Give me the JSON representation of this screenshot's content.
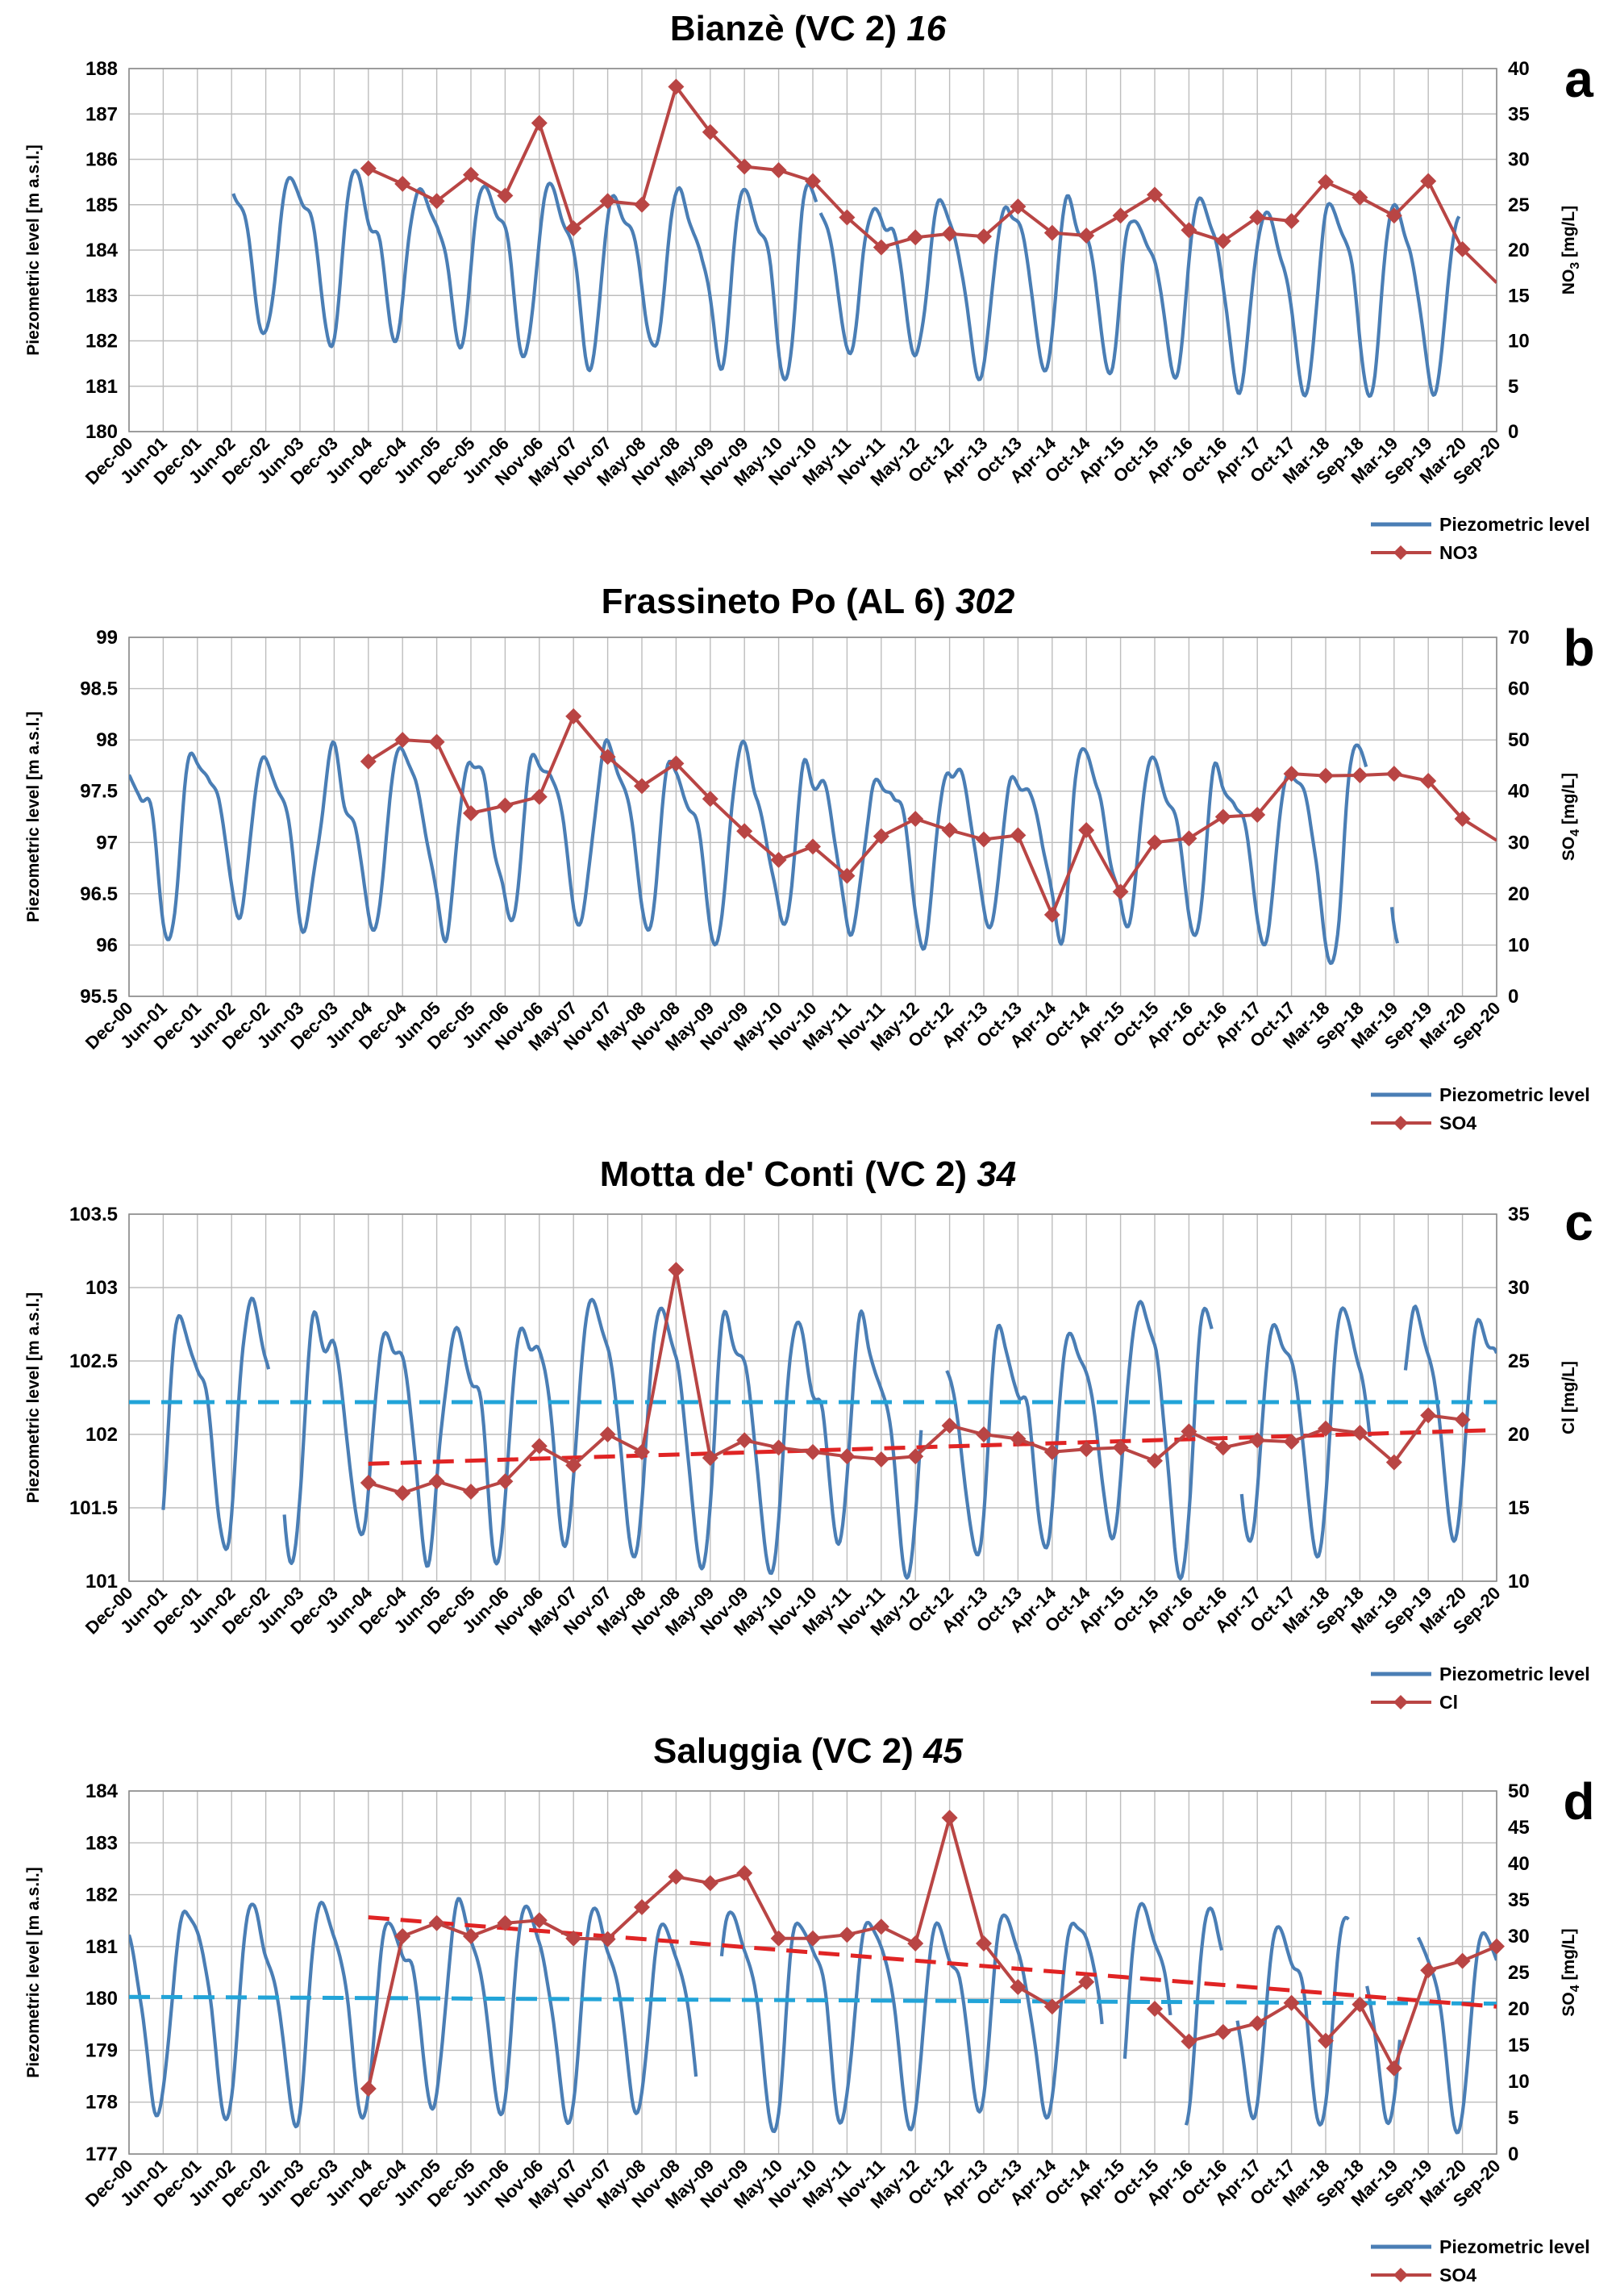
{
  "figure": {
    "x_ticks": [
      "Dec-00",
      "Jun-01",
      "Dec-01",
      "Jun-02",
      "Dec-02",
      "Jun-03",
      "Dec-03",
      "Jun-04",
      "Dec-04",
      "Jun-05",
      "Dec-05",
      "Jun-06",
      "Nov-06",
      "May-07",
      "Nov-07",
      "May-08",
      "Nov-08",
      "May-09",
      "Nov-09",
      "May-10",
      "Nov-10",
      "May-11",
      "Nov-11",
      "May-12",
      "Oct-12",
      "Apr-13",
      "Oct-13",
      "Apr-14",
      "Oct-14",
      "Apr-15",
      "Oct-15",
      "Apr-16",
      "Oct-16",
      "Apr-17",
      "Oct-17",
      "Mar-18",
      "Sep-18",
      "Mar-19",
      "Sep-19",
      "Mar-20",
      "Sep-20"
    ],
    "legend_piezo": "Piezometric level"
  },
  "chart_data": [
    {
      "type": "line",
      "panel": "a",
      "title_name": "Bianzè (VC 2) ",
      "title_num": "16",
      "ylabel_left": "Piezometric level [m a.s.l.]",
      "ylabel_right": "NO3 [mg/L]",
      "ylabel_right_pre": "NO",
      "ylabel_right_sub": "3",
      "ylabel_right_post": " [mg/L]",
      "ylim_left": [
        180,
        188
      ],
      "ylim_right": [
        0,
        40
      ],
      "yticks_left": [
        "180",
        "181",
        "182",
        "183",
        "184",
        "185",
        "186",
        "187",
        "188"
      ],
      "yticks_right": [
        "0",
        "5",
        "10",
        "15",
        "20",
        "25",
        "30",
        "35",
        "40"
      ],
      "legend_series": "NO3",
      "colors": {
        "piezo": "#4a7eb5",
        "chem": "#b94544"
      },
      "piezo": {
        "t0": 3.05,
        "t1": 38.9,
        "base": 184.2,
        "amp": 2.0,
        "period": 1.9,
        "phase": 0.6,
        "trend": -0.03,
        "noise": 0.35,
        "seed": 3,
        "gaps": [
          [
            20.1,
            20.2
          ]
        ]
      },
      "series": {
        "name": "NO3",
        "x": [
          7.0,
          8.0,
          9.0,
          10.0,
          11.0,
          12.0,
          13.0,
          14.0,
          15.0,
          16.0,
          17.0,
          18.0,
          19.0,
          20.0,
          21.0,
          22.0,
          23.0,
          24.0,
          25.0,
          26.0,
          27.0,
          28.0,
          29.0,
          30.0,
          31.0,
          32.0,
          33.0,
          34.0,
          35.0,
          36.0,
          37.0,
          38.0,
          39.0,
          40.0
        ],
        "values": [
          29.0,
          27.3,
          25.4,
          28.3,
          26.0,
          34.0,
          22.4,
          25.4,
          25.0,
          38.0,
          33.0,
          29.2,
          28.8,
          27.6,
          23.6,
          20.3,
          21.4,
          21.8,
          21.5,
          24.8,
          21.9,
          21.6,
          23.8,
          26.1,
          22.2,
          21.0,
          23.6,
          23.2,
          27.5,
          25.8,
          23.8,
          27.6,
          20.1,
          16.4
        ],
        "end_at_edge": true
      },
      "trend_lines": []
    },
    {
      "type": "line",
      "panel": "b",
      "title_name": "Frassineto Po (AL 6) ",
      "title_num": "302",
      "ylabel_left": "Piezometric level [m a.s.l.]",
      "ylabel_right": "SO4 [mg/L]",
      "ylabel_right_pre": "SO",
      "ylabel_right_sub": "4",
      "ylabel_right_post": " [mg/L]",
      "ylim_left": [
        95.5,
        99
      ],
      "ylim_right": [
        0,
        70
      ],
      "yticks_left": [
        "95.5",
        "96",
        "96.5",
        "97",
        "97.5",
        "98",
        "98.5",
        "99"
      ],
      "yticks_right": [
        "0",
        "10",
        "20",
        "30",
        "40",
        "50",
        "60",
        "70"
      ],
      "legend_series": "SO4",
      "colors": {
        "piezo": "#4a7eb5",
        "chem": "#b94544"
      },
      "piezo": {
        "t0": 0.0,
        "t1": 37.1,
        "base": 97.15,
        "amp": 0.9,
        "period": 2.0,
        "phase": 1.6,
        "trend": -0.004,
        "noise": 0.25,
        "seed": 11,
        "gaps": [
          [
            36.2,
            36.9
          ]
        ]
      },
      "series": {
        "name": "SO4",
        "x": [
          7.0,
          8.0,
          9.0,
          10.0,
          11.0,
          12.0,
          13.0,
          14.0,
          15.0,
          16.0,
          17.0,
          18.0,
          19.0,
          20.0,
          21.0,
          22.0,
          23.0,
          24.0,
          25.0,
          26.0,
          27.0,
          28.0,
          29.0,
          30.0,
          31.0,
          32.0,
          33.0,
          34.0,
          35.0,
          36.0,
          37.0,
          38.0,
          39.0,
          40.0
        ],
        "values": [
          45.8,
          50.0,
          49.6,
          35.7,
          37.2,
          38.9,
          54.6,
          46.7,
          41.0,
          45.4,
          38.5,
          32.2,
          26.6,
          29.2,
          23.5,
          31.2,
          34.6,
          32.4,
          30.6,
          31.4,
          15.9,
          32.4,
          20.4,
          30.0,
          30.8,
          35.0,
          35.4,
          43.4,
          43.0,
          43.1,
          43.4,
          42.0,
          34.6,
          30.4
        ],
        "end_at_edge": true
      },
      "trend_lines": []
    },
    {
      "type": "line",
      "panel": "c",
      "title_name": "Motta de' Conti (VC 2) ",
      "title_num": "34",
      "ylabel_left": "Piezometric level [m a.s.l.]",
      "ylabel_right": "Cl [mg/L]",
      "ylabel_right_pre": "Cl",
      "ylabel_right_sub": "",
      "ylabel_right_post": " [mg/L]",
      "ylim_left": [
        101,
        103.5
      ],
      "ylim_right": [
        10,
        35
      ],
      "yticks_left": [
        "101",
        "101.5",
        "102",
        "102.5",
        "103",
        "103.5"
      ],
      "yticks_right": [
        "10",
        "15",
        "20",
        "25",
        "30",
        "35"
      ],
      "legend_series": "Cl",
      "colors": {
        "piezo": "#4a7eb5",
        "chem": "#b94544"
      },
      "piezo": {
        "t0": 1.0,
        "t1": 40.0,
        "base": 102.1,
        "amp": 0.85,
        "period": 2.0,
        "phase": 1.2,
        "trend": 0.0,
        "noise": 0.18,
        "seed": 21,
        "gaps": [
          [
            4.1,
            4.5
          ],
          [
            23.2,
            23.9
          ],
          [
            31.7,
            32.5
          ],
          [
            36.3,
            37.3
          ]
        ]
      },
      "series": {
        "name": "Cl",
        "x": [
          7.0,
          8.0,
          9.0,
          10.0,
          11.0,
          12.0,
          13.0,
          14.0,
          15.0,
          16.0,
          17.0,
          18.0,
          19.0,
          20.0,
          21.0,
          22.0,
          23.0,
          24.0,
          25.0,
          26.0,
          27.0,
          28.0,
          29.0,
          30.0,
          31.0,
          32.0,
          33.0,
          34.0,
          35.0,
          36.0,
          37.0,
          38.0,
          39.0
        ],
        "values": [
          16.7,
          16.0,
          16.8,
          16.1,
          16.8,
          19.2,
          17.9,
          20.0,
          18.8,
          31.2,
          18.4,
          19.6,
          19.1,
          18.8,
          18.5,
          18.3,
          18.5,
          20.6,
          20.0,
          19.7,
          18.8,
          19.0,
          19.1,
          18.2,
          20.2,
          19.1,
          19.6,
          19.5,
          20.4,
          20.1,
          18.1,
          21.3,
          21.0
        ],
        "end_at_edge": false
      },
      "trend_lines": [
        {
          "color": "#22a4d8",
          "x": [
            0.0,
            40.0
          ],
          "y_axis": "left",
          "values": [
            102.22,
            102.22
          ]
        },
        {
          "color": "#e02424",
          "x": [
            7.0,
            40.0
          ],
          "y_axis": "right",
          "values": [
            18.0,
            20.3
          ]
        }
      ]
    },
    {
      "type": "line",
      "panel": "d",
      "title_name": "Saluggia (VC 2) ",
      "title_num": "45",
      "ylabel_left": "Piezometric level [m a.s.l.]",
      "ylabel_right": "SO4 [mg/L]",
      "ylabel_right_pre": "SO",
      "ylabel_right_sub": "4",
      "ylabel_right_post": " [mg/L]",
      "ylim_left": [
        177,
        184
      ],
      "ylim_right": [
        0,
        50
      ],
      "yticks_left": [
        "177",
        "178",
        "179",
        "180",
        "181",
        "182",
        "183",
        "184"
      ],
      "yticks_right": [
        "0",
        "5",
        "10",
        "15",
        "20",
        "25",
        "30",
        "35",
        "40",
        "45",
        "50"
      ],
      "legend_series": "SO4",
      "colors": {
        "piezo": "#4a7eb5",
        "chem": "#b94544"
      },
      "piezo": {
        "t0": 0.0,
        "t1": 40.0,
        "base": 180.0,
        "amp": 2.1,
        "period": 2.0,
        "phase": 1.3,
        "trend": -0.005,
        "noise": 0.3,
        "seed": 33,
        "gaps": [
          [
            16.6,
            17.3
          ],
          [
            28.5,
            29.1
          ],
          [
            30.5,
            30.9
          ],
          [
            32.0,
            32.4
          ],
          [
            35.7,
            36.2
          ],
          [
            37.2,
            37.7
          ]
        ]
      },
      "series": {
        "name": "SO4",
        "x": [
          7.0,
          8.0,
          9.0,
          10.0,
          11.0,
          12.0,
          13.0,
          14.0,
          15.0,
          16.0,
          17.0,
          18.0,
          19.0,
          20.0,
          21.0,
          22.0,
          23.0,
          24.0,
          25.0,
          26.0,
          27.0,
          28.0,
          29.0,
          30.0,
          31.0,
          32.0,
          33.0,
          34.0,
          35.0,
          36.0,
          37.0,
          38.0,
          39.0,
          40.0
        ],
        "values": [
          9.0,
          30.0,
          31.8,
          30.0,
          31.8,
          32.2,
          29.7,
          29.6,
          34.0,
          38.2,
          37.3,
          38.7,
          29.7,
          29.7,
          30.2,
          31.3,
          29.0,
          46.3,
          29.0,
          23.0,
          20.3,
          23.7,
          null,
          20.0,
          15.5,
          16.8,
          18.0,
          20.8,
          15.6,
          20.6,
          11.8,
          25.3,
          26.6,
          28.6
        ],
        "end_at_edge": false
      },
      "trend_lines": [
        {
          "color": "#22a4d8",
          "x": [
            0.0,
            40.0
          ],
          "y_axis": "left",
          "values": [
            180.03,
            179.9
          ]
        },
        {
          "color": "#e02424",
          "x": [
            7.0,
            40.0
          ],
          "y_axis": "right",
          "values": [
            32.6,
            20.3
          ]
        }
      ]
    }
  ]
}
